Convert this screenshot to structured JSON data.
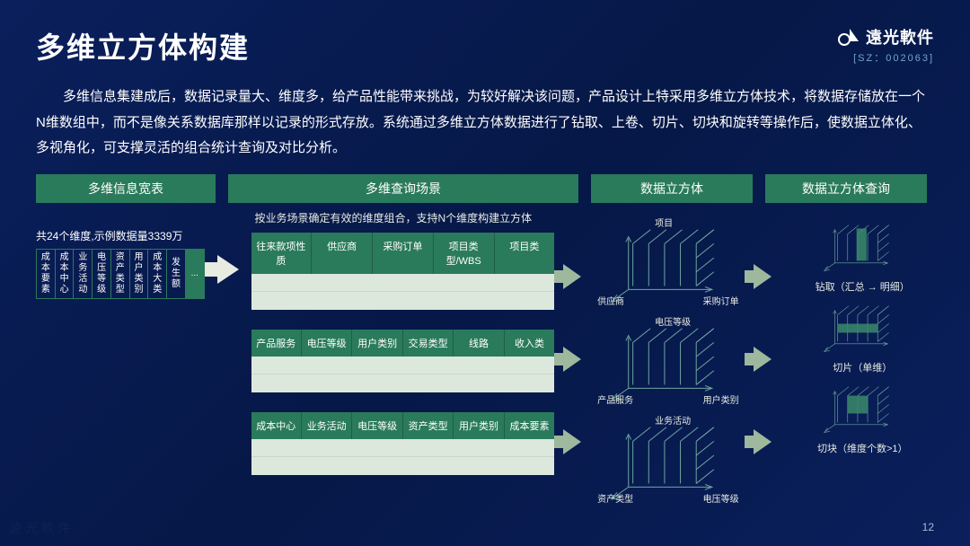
{
  "title": "多维立方体构建",
  "logo": {
    "text": "遠光軟件",
    "code": "[SZ：002063]"
  },
  "description": "多维信息集建成后，数据记录量大、维度多，给产品性能带来挑战，为较好解决该问题，产品设计上特采用多维立方体技术，将数据存储放在一个N维数组中，而不是像关系数据库那样以记录的形式存放。系统通过多维立方体数据进行了钻取、上卷、切片、切块和旋转等操作后，使数据立体化、多视角化，可支撑灵活的组合统计查询及对比分析。",
  "columns": {
    "c1": "多维信息宽表",
    "c2": "多维查询场景",
    "c3": "数据立方体",
    "c4": "数据立方体查询"
  },
  "col1": {
    "caption": "共24个维度,示例数据量3339万",
    "dims": [
      "成本要素",
      "成本中心",
      "业务活动",
      "电压等级",
      "资产类型",
      "用户类别",
      "成本大类",
      "发生额",
      "..."
    ]
  },
  "col2": {
    "note": "按业务场景确定有效的维度组合，支持N个维度构建立方体",
    "tables": [
      [
        "往来款项性质",
        "供应商",
        "采购订单",
        "项目类型/WBS",
        "项目类"
      ],
      [
        "产品服务",
        "电压等级",
        "用户类别",
        "交易类型",
        "线路",
        "收入类"
      ],
      [
        "成本中心",
        "业务活动",
        "电压等级",
        "资产类型",
        "用户类别",
        "成本要素"
      ]
    ]
  },
  "cubes": [
    {
      "top": "项目",
      "left": "供应商",
      "right": "采购订单"
    },
    {
      "top": "电压等级",
      "left": "产品服务",
      "right": "用户类别"
    },
    {
      "top": "业务活动",
      "left": "资产类型",
      "right": "电压等级"
    }
  ],
  "queries": [
    "钻取（汇总 → 明细）",
    "切片（单维）",
    "切块（维度个数>1）"
  ],
  "colors": {
    "header_bg": "#2a7a5c",
    "body_bg": "#dce8dc",
    "arrow_light": "#e8ebe0",
    "arrow_green": "#9db89d",
    "line": "#6fa8a0",
    "highlight": "#3a8a6c"
  },
  "page_num": "12"
}
